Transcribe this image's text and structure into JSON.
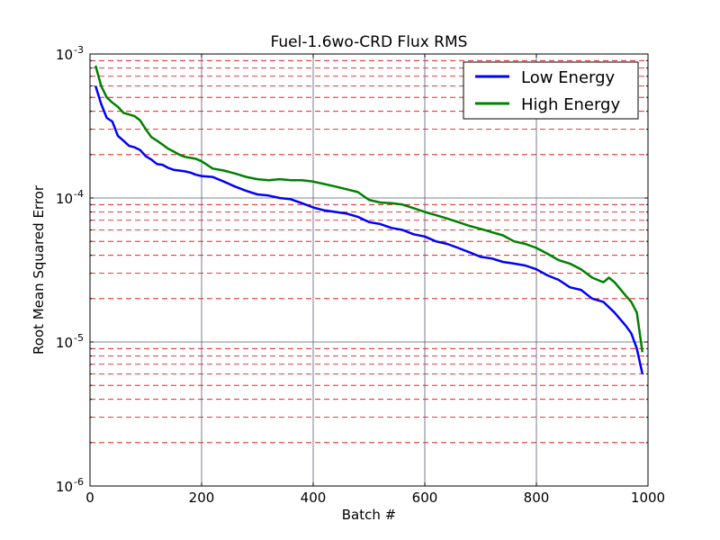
{
  "chart_data": {
    "type": "line",
    "title": "Fuel-1.6wo-CRD Flux RMS",
    "xlabel": "Batch #",
    "ylabel": "Root Mean Squared Error",
    "xlim": [
      0,
      1000
    ],
    "ylim": [
      1e-06,
      0.001
    ],
    "yscale": "log",
    "grid": {
      "major": true,
      "minor": true
    },
    "legend_position": "top-right",
    "x_ticks": [
      {
        "value": 0,
        "label": "0"
      },
      {
        "value": 200,
        "label": "200"
      },
      {
        "value": 400,
        "label": "400"
      },
      {
        "value": 600,
        "label": "600"
      },
      {
        "value": 800,
        "label": "800"
      },
      {
        "value": 1000,
        "label": "1000"
      }
    ],
    "y_ticks": [
      {
        "value": 0.001,
        "base": "10",
        "exp": "-3"
      },
      {
        "value": 0.0001,
        "base": "10",
        "exp": "-4"
      },
      {
        "value": 1e-05,
        "base": "10",
        "exp": "-5"
      },
      {
        "value": 1e-06,
        "base": "10",
        "exp": "-6"
      }
    ],
    "series": [
      {
        "name": "Low Energy",
        "color": "#0000ff",
        "points": [
          [
            10,
            0.0006
          ],
          [
            20,
            0.00045
          ],
          [
            30,
            0.00036
          ],
          [
            40,
            0.00034
          ],
          [
            50,
            0.00027
          ],
          [
            60,
            0.00025
          ],
          [
            70,
            0.00023
          ],
          [
            80,
            0.000225
          ],
          [
            90,
            0.000215
          ],
          [
            100,
            0.000195
          ],
          [
            110,
            0.000185
          ],
          [
            120,
            0.000172
          ],
          [
            130,
            0.00017
          ],
          [
            140,
            0.000162
          ],
          [
            150,
            0.000157
          ],
          [
            160,
            0.000155
          ],
          [
            170,
            0.000153
          ],
          [
            180,
            0.00015
          ],
          [
            190,
            0.000145
          ],
          [
            200,
            0.000142
          ],
          [
            220,
            0.00014
          ],
          [
            240,
            0.00013
          ],
          [
            260,
            0.00012
          ],
          [
            280,
            0.000112
          ],
          [
            300,
            0.000106
          ],
          [
            320,
            0.000104
          ],
          [
            340,
            0.0001
          ],
          [
            360,
            9.8e-05
          ],
          [
            380,
            9.2e-05
          ],
          [
            400,
            8.6e-05
          ],
          [
            420,
            8.2e-05
          ],
          [
            440,
            8e-05
          ],
          [
            460,
            7.8e-05
          ],
          [
            480,
            7.4e-05
          ],
          [
            500,
            6.8e-05
          ],
          [
            520,
            6.6e-05
          ],
          [
            540,
            6.2e-05
          ],
          [
            560,
            6e-05
          ],
          [
            580,
            5.6e-05
          ],
          [
            600,
            5.4e-05
          ],
          [
            620,
            5e-05
          ],
          [
            640,
            4.8e-05
          ],
          [
            660,
            4.5e-05
          ],
          [
            680,
            4.2e-05
          ],
          [
            700,
            3.9e-05
          ],
          [
            720,
            3.8e-05
          ],
          [
            740,
            3.6e-05
          ],
          [
            760,
            3.5e-05
          ],
          [
            780,
            3.4e-05
          ],
          [
            800,
            3.2e-05
          ],
          [
            820,
            2.9e-05
          ],
          [
            840,
            2.7e-05
          ],
          [
            860,
            2.4e-05
          ],
          [
            880,
            2.3e-05
          ],
          [
            900,
            2e-05
          ],
          [
            920,
            1.9e-05
          ],
          [
            940,
            1.6e-05
          ],
          [
            960,
            1.3e-05
          ],
          [
            970,
            1.15e-05
          ],
          [
            980,
            9e-06
          ],
          [
            990,
            6e-06
          ]
        ]
      },
      {
        "name": "High Energy",
        "color": "#008000",
        "points": [
          [
            10,
            0.00083
          ],
          [
            20,
            0.0006
          ],
          [
            30,
            0.0005
          ],
          [
            40,
            0.00046
          ],
          [
            50,
            0.00043
          ],
          [
            60,
            0.00039
          ],
          [
            70,
            0.00038
          ],
          [
            80,
            0.00037
          ],
          [
            90,
            0.000345
          ],
          [
            100,
            0.0003
          ],
          [
            110,
            0.000265
          ],
          [
            120,
            0.00025
          ],
          [
            130,
            0.000235
          ],
          [
            140,
            0.00022
          ],
          [
            150,
            0.00021
          ],
          [
            160,
            0.0002
          ],
          [
            170,
            0.000193
          ],
          [
            180,
            0.00019
          ],
          [
            190,
            0.000187
          ],
          [
            200,
            0.00018
          ],
          [
            220,
            0.00016
          ],
          [
            240,
            0.000155
          ],
          [
            260,
            0.000148
          ],
          [
            280,
            0.00014
          ],
          [
            300,
            0.000135
          ],
          [
            320,
            0.000133
          ],
          [
            340,
            0.000135
          ],
          [
            360,
            0.000133
          ],
          [
            380,
            0.000133
          ],
          [
            400,
            0.00013
          ],
          [
            420,
            0.000125
          ],
          [
            440,
            0.00012
          ],
          [
            460,
            0.000115
          ],
          [
            480,
            0.00011
          ],
          [
            500,
            9.7e-05
          ],
          [
            520,
            9.3e-05
          ],
          [
            540,
            9.2e-05
          ],
          [
            560,
            9e-05
          ],
          [
            580,
            8.5e-05
          ],
          [
            600,
            8e-05
          ],
          [
            620,
            7.6e-05
          ],
          [
            640,
            7.2e-05
          ],
          [
            660,
            6.8e-05
          ],
          [
            680,
            6.4e-05
          ],
          [
            700,
            6.1e-05
          ],
          [
            720,
            5.8e-05
          ],
          [
            740,
            5.5e-05
          ],
          [
            760,
            5e-05
          ],
          [
            780,
            4.8e-05
          ],
          [
            800,
            4.5e-05
          ],
          [
            820,
            4.1e-05
          ],
          [
            840,
            3.7e-05
          ],
          [
            860,
            3.5e-05
          ],
          [
            880,
            3.2e-05
          ],
          [
            900,
            2.8e-05
          ],
          [
            920,
            2.6e-05
          ],
          [
            930,
            2.8e-05
          ],
          [
            940,
            2.6e-05
          ],
          [
            960,
            2.1e-05
          ],
          [
            970,
            1.9e-05
          ],
          [
            980,
            1.6e-05
          ],
          [
            990,
            8.5e-06
          ]
        ]
      }
    ]
  }
}
